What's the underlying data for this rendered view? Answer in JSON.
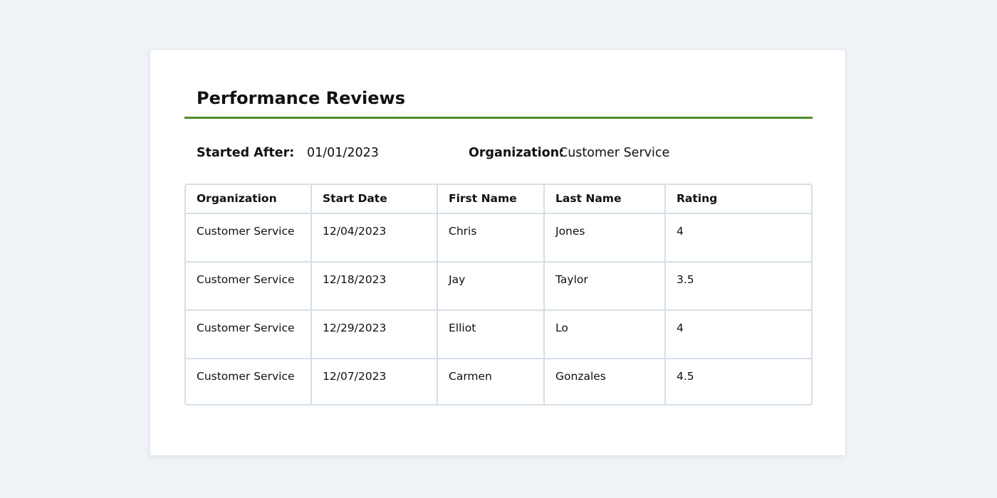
{
  "report": {
    "title": "Performance Reviews"
  },
  "filters": {
    "started_after_label": "Started After:",
    "started_after_value": "01/01/2023",
    "organization_label": "Organization:",
    "organization_value": "Customer Service"
  },
  "table": {
    "headers": [
      "Organization",
      "Start Date",
      "First Name",
      "Last Name",
      "Rating"
    ],
    "rows": [
      [
        "Customer Service",
        "12/04/2023",
        "Chris",
        "Jones",
        "4"
      ],
      [
        "Customer Service",
        "12/18/2023",
        "Jay",
        "Taylor",
        "3.5"
      ],
      [
        "Customer Service",
        "12/29/2023",
        "Elliot",
        "Lo",
        "4"
      ],
      [
        "Customer Service",
        "12/07/2023",
        "Carmen",
        "Gonzales",
        "4.5"
      ]
    ]
  },
  "colors": {
    "page_background": "#eff3f8",
    "card_background": "#ffffff",
    "accent_rule": "#4f8f2b",
    "table_border": "#d7dee7",
    "text": "#111111"
  }
}
